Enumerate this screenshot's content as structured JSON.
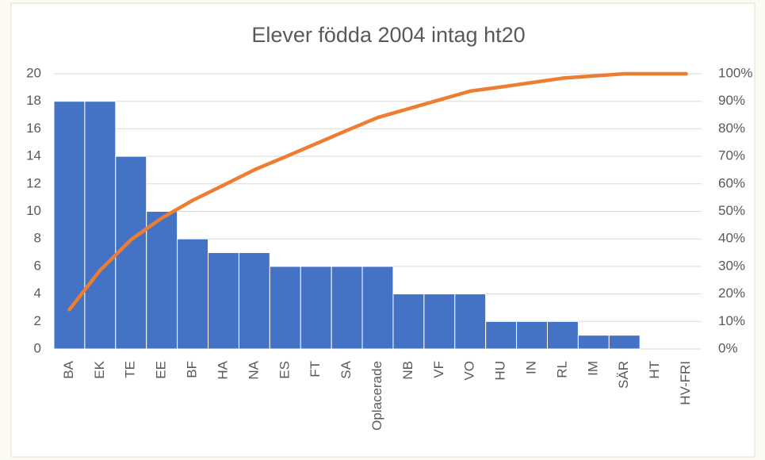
{
  "chart_data": {
    "type": "pareto",
    "title": "Elever födda 2004 intag ht20",
    "categories": [
      "BA",
      "EK",
      "TE",
      "EE",
      "BF",
      "HA",
      "NA",
      "ES",
      "FT",
      "SA",
      "Oplacerade",
      "NB",
      "VF",
      "VO",
      "HU",
      "IN",
      "RL",
      "IM",
      "SÄR",
      "HT",
      "HV-FRI"
    ],
    "series": [
      {
        "color": "#4472c4",
        "values": [
          18,
          18,
          14,
          10,
          8,
          7,
          7,
          6,
          6,
          6,
          6,
          4,
          4,
          4,
          2,
          2,
          2,
          1,
          1,
          0,
          0
        ]
      },
      {
        "color": "#ed7d31",
        "axis": "y2",
        "values": [
          14.3,
          28.6,
          39.7,
          47.6,
          54.0,
          59.5,
          65.1,
          69.8,
          74.6,
          79.4,
          84.1,
          87.3,
          90.5,
          93.7,
          95.2,
          96.8,
          98.4,
          99.2,
          100,
          100,
          100
        ]
      }
    ],
    "ylim": [
      0,
      20
    ],
    "yticks": [
      0,
      2,
      4,
      6,
      8,
      10,
      12,
      14,
      16,
      18,
      20
    ],
    "y2lim": [
      0,
      100
    ],
    "y2ticks": [
      {
        "value": 0,
        "label": "0%"
      },
      {
        "value": 10,
        "label": "10%"
      },
      {
        "value": 20,
        "label": "20%"
      },
      {
        "value": 30,
        "label": "30%"
      },
      {
        "value": 40,
        "label": "40%"
      },
      {
        "value": 50,
        "label": "50%"
      },
      {
        "value": 60,
        "label": "60%"
      },
      {
        "value": 70,
        "label": "70%"
      },
      {
        "value": 80,
        "label": "80%"
      },
      {
        "value": 90,
        "label": "90%"
      },
      {
        "value": 100,
        "label": "100%"
      }
    ],
    "grid": true
  }
}
